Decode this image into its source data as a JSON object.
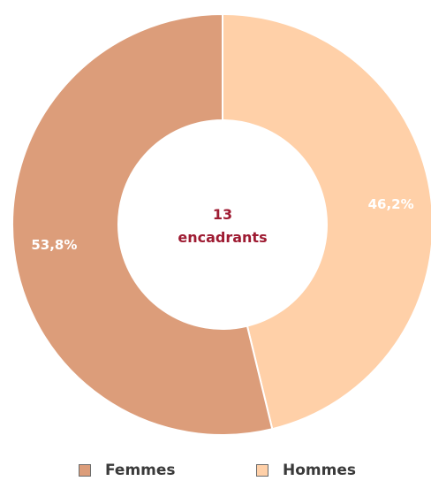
{
  "chart_data": {
    "type": "pie",
    "donut": true,
    "center_label": {
      "line1": "13",
      "line2": "encadrants"
    },
    "series": [
      {
        "name": "Hommes",
        "value": 46.2,
        "label": "46,2%",
        "color": "#ffd0a8"
      },
      {
        "name": "Femmes",
        "value": 53.8,
        "label": "53,8%",
        "color": "#dc9d7a"
      }
    ],
    "legend": {
      "placement": "bottom",
      "items": [
        {
          "name": "Femmes",
          "color": "#dc9d7a"
        },
        {
          "name": "Hommes",
          "color": "#ffd0a8"
        }
      ]
    }
  }
}
